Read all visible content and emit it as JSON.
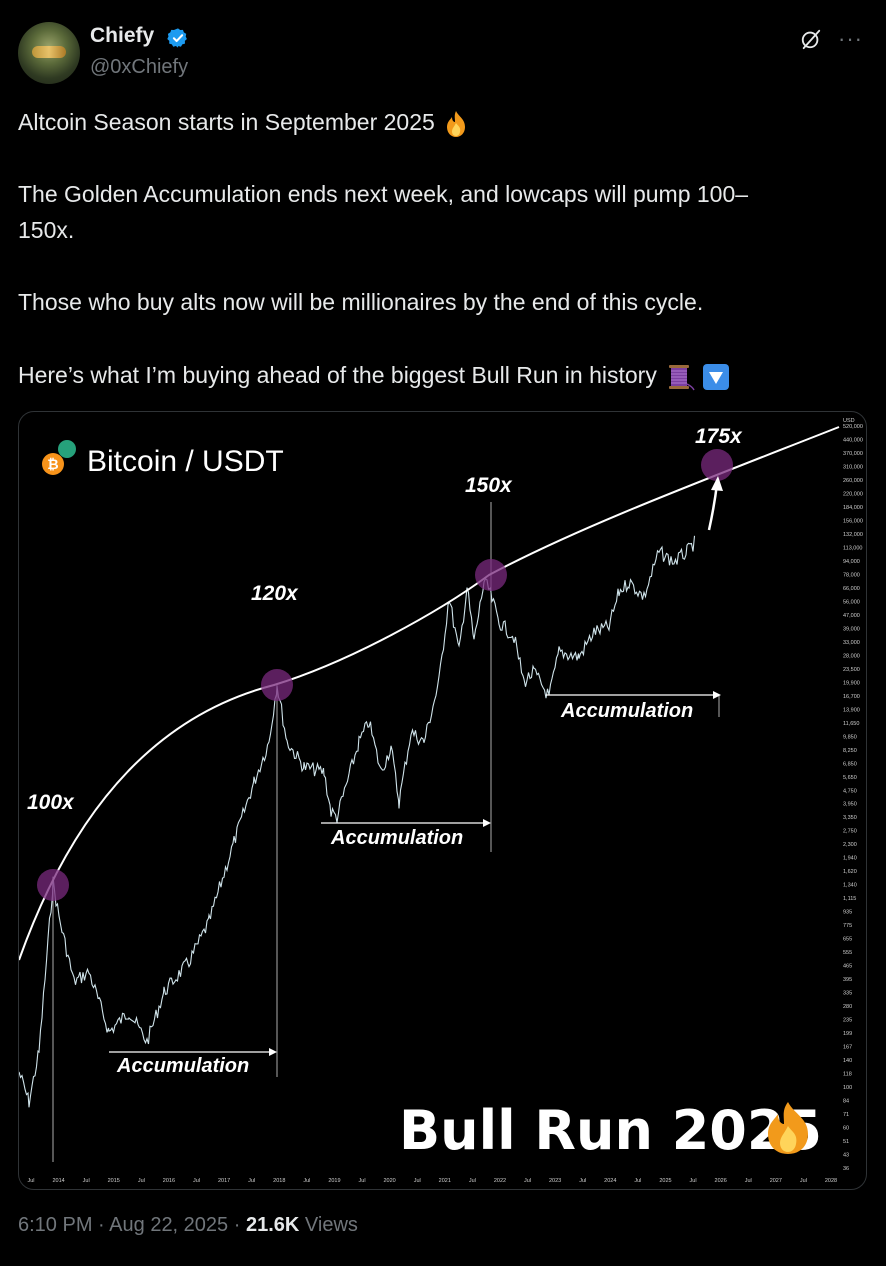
{
  "author": {
    "name": "Chiefy",
    "handle": "@0xChiefy"
  },
  "tweet": {
    "line1": "Altcoin Season starts in September 2025",
    "line2a": "The Golden Accumulation ends next week, and lowcaps will pump 100–",
    "line2b": "150x.",
    "line3": "Those who buy alts now will be millionaires by the end of this cycle.",
    "line4": "Here’s what I’m buying ahead of the biggest Bull Run in history"
  },
  "footer": {
    "time": "6:10 PM",
    "sep1": "·",
    "date": "Aug 22, 2025",
    "sep2": "·",
    "views_count": "21.6K",
    "views_label": "Views"
  },
  "icons": {
    "verified": "verified-badge-icon",
    "grok": "grok-icon",
    "more": "more-icon",
    "fire": "fire-emoji",
    "thread": "thread-spool-emoji",
    "down": "down-arrow-emoji"
  },
  "colors": {
    "verified": "#1d9bf0",
    "muted": "#71767b",
    "text": "#e7e9ea",
    "marker": "#7a2a7e"
  },
  "chart_data": {
    "type": "line",
    "title": "Bitcoin / USDT",
    "watermark": "Bull Run 2025",
    "x_tick_labels": [
      "Jul",
      "2014",
      "Jul",
      "2015",
      "Jul",
      "2016",
      "Jul",
      "2017",
      "Jul",
      "2018",
      "Jul",
      "2019",
      "Jul",
      "2020",
      "Jul",
      "2021",
      "Jul",
      "2022",
      "Jul",
      "2023",
      "Jul",
      "2024",
      "Jul",
      "2025",
      "Jul",
      "2026",
      "Jul",
      "2027",
      "Jul",
      "2028"
    ],
    "y_unit": "USD",
    "y_tick_labels": [
      "520,000",
      "440,000",
      "370,000",
      "310,000",
      "260,000",
      "220,000",
      "184,000",
      "156,000",
      "132,000",
      "113,000",
      "94,000",
      "78,000",
      "66,000",
      "56,000",
      "47,000",
      "39,000",
      "33,000",
      "28,000",
      "23,500",
      "19,900",
      "16,700",
      "13,900",
      "11,650",
      "9,850",
      "8,250",
      "6,850",
      "5,650",
      "4,750",
      "3,950",
      "3,350",
      "2,750",
      "2,300",
      "1,940",
      "1,620",
      "1,340",
      "1,115",
      "935",
      "775",
      "655",
      "555",
      "465",
      "395",
      "335",
      "280",
      "235",
      "199",
      "167",
      "140",
      "118",
      "100",
      "84",
      "71",
      "60",
      "51",
      "43",
      "36"
    ],
    "log_scale": true,
    "annotations": [
      "100x",
      "120x",
      "150x",
      "175x",
      "Accumulation",
      "Accumulation",
      "Accumulation"
    ]
  }
}
